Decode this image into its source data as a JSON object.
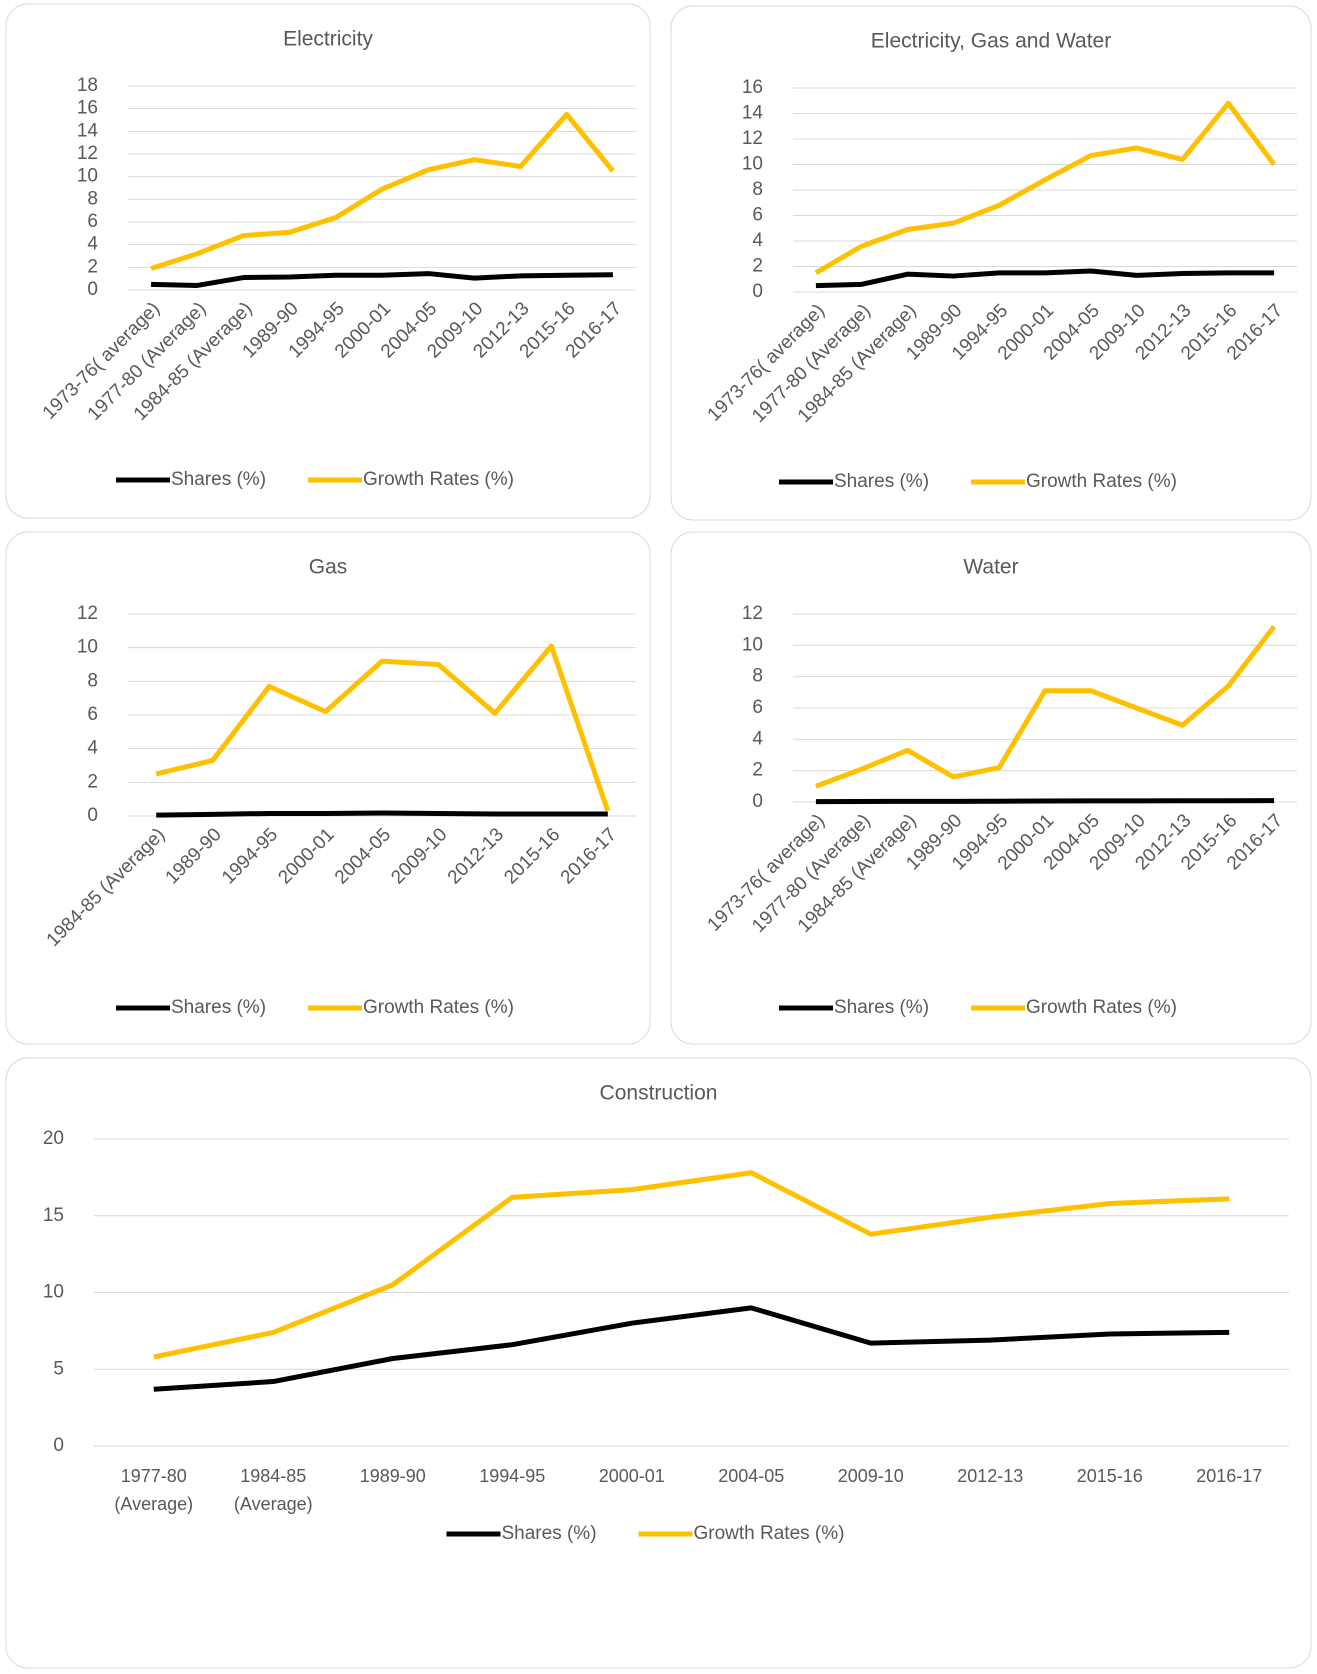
{
  "chart_data": [
    {
      "type": "line",
      "title": "Electricity",
      "categories": [
        "1973-76( average)",
        "1977-80 (Average)",
        "1984-85 (Average)",
        "1989-90",
        "1994-95",
        "2000-01",
        "2004-05",
        "2009-10",
        "2012-13",
        "2015-16",
        "2016-17"
      ],
      "series": [
        {
          "name": "Shares (%)",
          "color": "#000000",
          "values": [
            0.5,
            0.4,
            1.1,
            1.15,
            1.3,
            1.3,
            1.45,
            1.05,
            1.25,
            1.3,
            1.35
          ]
        },
        {
          "name": "Growth Rates (%)",
          "color": "#FFC000",
          "values": [
            1.9,
            3.2,
            4.8,
            5.1,
            6.4,
            8.9,
            10.6,
            11.5,
            10.9,
            15.5,
            10.5
          ]
        }
      ],
      "ylim": [
        0,
        18
      ],
      "yticks": [
        0,
        2,
        4,
        6,
        8,
        10,
        12,
        14,
        16,
        18
      ],
      "grid": true,
      "legend": "bottom"
    },
    {
      "type": "line",
      "title": "Electricity, Gas and Water",
      "categories": [
        "1973-76( average)",
        "1977-80 (Average)",
        "1984-85 (Average)",
        "1989-90",
        "1994-95",
        "2000-01",
        "2004-05",
        "2009-10",
        "2012-13",
        "2015-16",
        "2016-17"
      ],
      "series": [
        {
          "name": "Shares (%)",
          "color": "#000000",
          "values": [
            0.5,
            0.6,
            1.4,
            1.25,
            1.5,
            1.5,
            1.65,
            1.3,
            1.45,
            1.5,
            1.5
          ]
        },
        {
          "name": "Growth Rates (%)",
          "color": "#FFC000",
          "values": [
            1.5,
            3.6,
            4.9,
            5.4,
            6.8,
            8.8,
            10.7,
            11.3,
            10.4,
            14.8,
            10.0
          ]
        }
      ],
      "ylim": [
        0,
        16
      ],
      "yticks": [
        0,
        2,
        4,
        6,
        8,
        10,
        12,
        14,
        16
      ],
      "grid": true,
      "legend": "bottom"
    },
    {
      "type": "line",
      "title": "Gas",
      "categories": [
        "1984-85 (Average)",
        "1989-90",
        "1994-95",
        "2000-01",
        "2004-05",
        "2009-10",
        "2012-13",
        "2015-16",
        "2016-17"
      ],
      "series": [
        {
          "name": "Shares (%)",
          "color": "#000000",
          "values": [
            0.05,
            0.1,
            0.15,
            0.15,
            0.18,
            0.15,
            0.12,
            0.12,
            0.12
          ]
        },
        {
          "name": "Growth Rates (%)",
          "color": "#FFC000",
          "values": [
            2.5,
            3.3,
            7.7,
            6.2,
            9.2,
            9.0,
            6.1,
            10.1,
            0.3
          ]
        }
      ],
      "ylim": [
        0,
        12
      ],
      "yticks": [
        0,
        2,
        4,
        6,
        8,
        10,
        12
      ],
      "grid": true,
      "legend": "bottom"
    },
    {
      "type": "line",
      "title": "Water",
      "categories": [
        "1973-76( average)",
        "1977-80 (Average)",
        "1984-85 (Average)",
        "1989-90",
        "1994-95",
        "2000-01",
        "2004-05",
        "2009-10",
        "2012-13",
        "2015-16",
        "2016-17"
      ],
      "series": [
        {
          "name": "Shares (%)",
          "color": "#000000",
          "values": [
            0.02,
            0.03,
            0.04,
            0.04,
            0.05,
            0.06,
            0.07,
            0.07,
            0.08,
            0.08,
            0.09
          ]
        },
        {
          "name": "Growth Rates (%)",
          "color": "#FFC000",
          "values": [
            1.0,
            2.1,
            3.3,
            1.6,
            2.2,
            7.1,
            7.1,
            6.0,
            4.9,
            7.4,
            11.2
          ]
        }
      ],
      "ylim": [
        0,
        12
      ],
      "yticks": [
        0,
        2,
        4,
        6,
        8,
        10,
        12
      ],
      "grid": true,
      "legend": "bottom"
    },
    {
      "type": "line",
      "title": "Construction",
      "categories": [
        "1977-80 (Average)",
        "1984-85 (Average)",
        "1989-90",
        "1994-95",
        "2000-01",
        "2004-05",
        "2009-10",
        "2012-13",
        "2015-16",
        "2016-17"
      ],
      "series": [
        {
          "name": "Shares (%)",
          "color": "#000000",
          "values": [
            3.7,
            4.2,
            5.7,
            6.6,
            8.0,
            9.0,
            6.7,
            6.9,
            7.3,
            7.4
          ]
        },
        {
          "name": "Growth Rates (%)",
          "color": "#FFC000",
          "values": [
            5.8,
            7.4,
            10.5,
            16.2,
            16.7,
            17.8,
            13.8,
            14.9,
            15.8,
            16.1
          ]
        }
      ],
      "ylim": [
        0,
        20
      ],
      "yticks": [
        0,
        5,
        10,
        15,
        20
      ],
      "grid": true,
      "legend": "bottom"
    }
  ]
}
